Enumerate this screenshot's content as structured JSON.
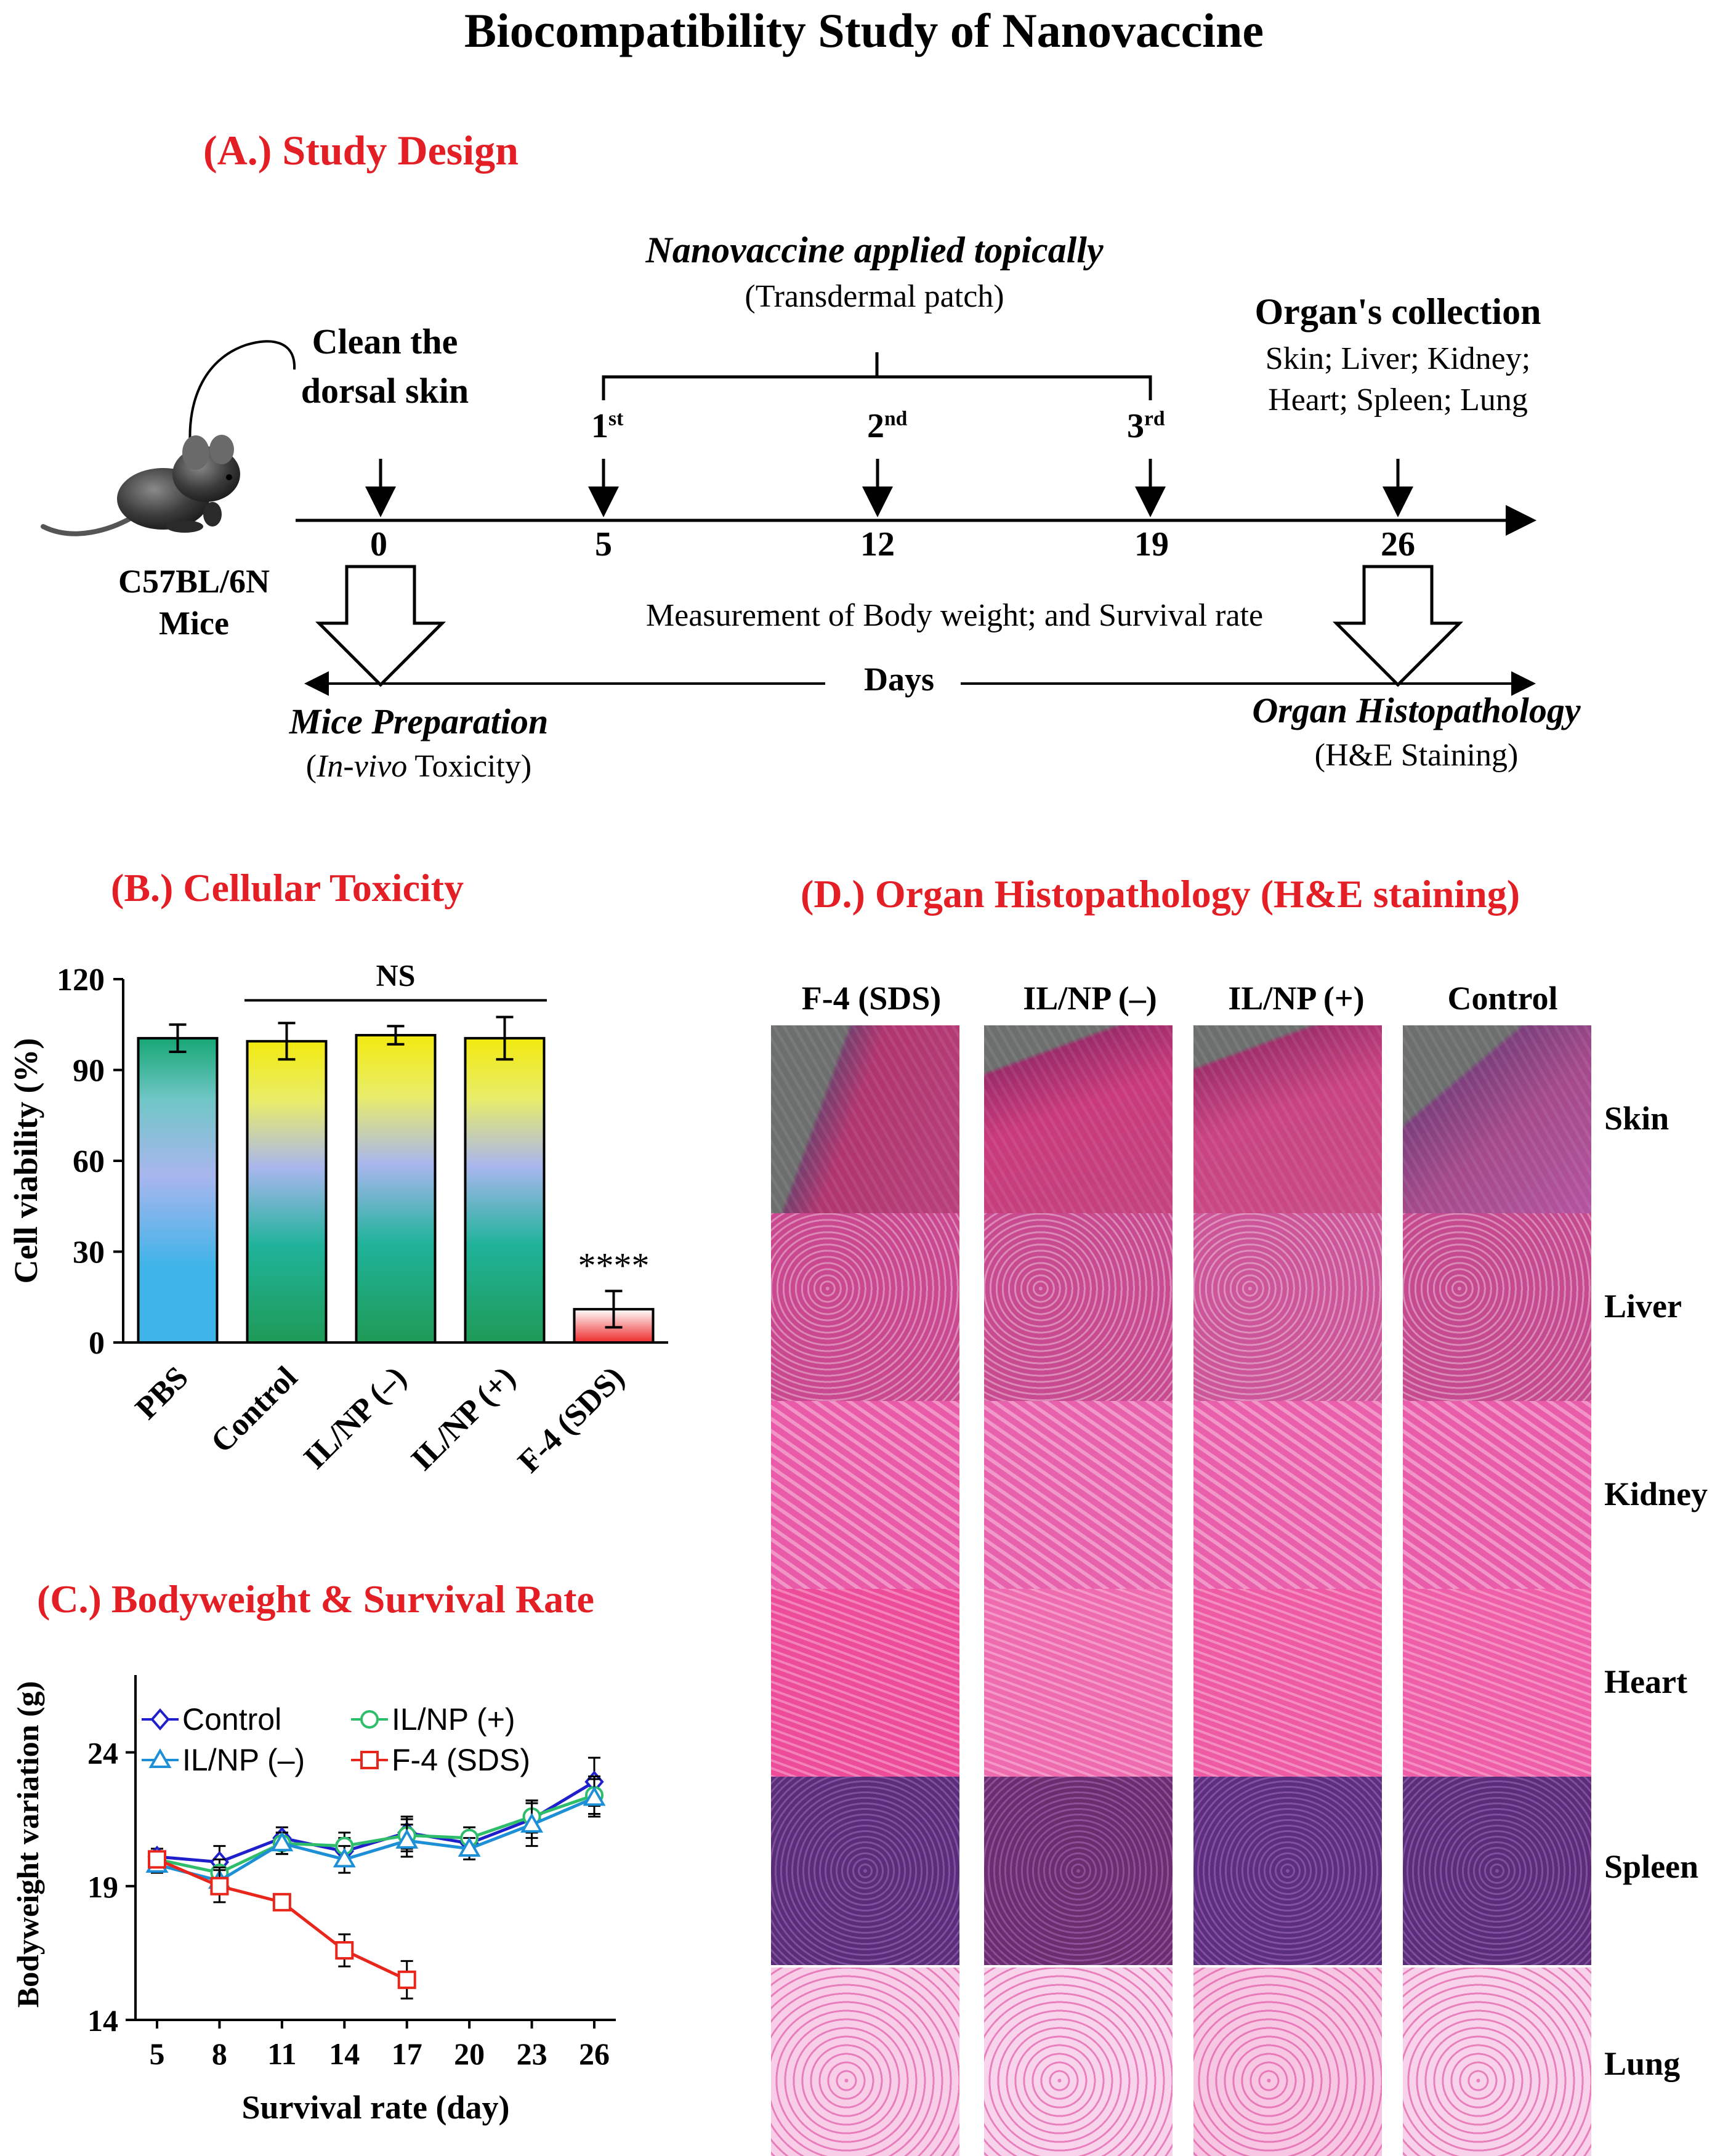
{
  "title": "Biocompatibility Study of Nanovaccine",
  "section_a": {
    "heading": "(A.) Study Design",
    "applied": "Nanovaccine applied topically",
    "patch": "(Transdermal patch)",
    "clean_1": "Clean the",
    "clean_2": "dorsal skin",
    "organs_head": "Organ's collection",
    "organs_1": "Skin; Liver; Kidney;",
    "organs_2": "Heart; Spleen; Lung",
    "mice_1": "C57BL/6N",
    "mice_2": "Mice",
    "doses": [
      {
        "num": "1",
        "sup": "st"
      },
      {
        "num": "2",
        "sup": "nd"
      },
      {
        "num": "3",
        "sup": "rd"
      }
    ],
    "days": [
      "0",
      "5",
      "12",
      "19",
      "26"
    ],
    "measurement": "Measurement of Body weight; and Survival rate",
    "days_label": "Days",
    "prep_1": "Mice Preparation",
    "prep_2_italic": "In-vivo",
    "prep_2_rest": " Toxicity)",
    "prep_2_open": "(",
    "histo_1": "Organ Histopathology",
    "histo_2": "(H&E Staining)"
  },
  "section_b": {
    "heading": "(B.) Cellular Toxicity"
  },
  "section_c": {
    "heading": "(C.) Bodyweight & Survival Rate"
  },
  "section_d": {
    "heading": "(D.) Organ Histopathology (H&E staining)",
    "columns": [
      "F-4 (SDS)",
      "IL/NP (–)",
      "IL/NP (+)",
      "Control"
    ],
    "rows": [
      "Skin",
      "Liver",
      "Kidney",
      "Heart",
      "Spleen",
      "Lung"
    ]
  },
  "chart_data": [
    {
      "type": "bar",
      "ylabel": "Cell viability (%)",
      "ylim": [
        0,
        120
      ],
      "yticks": [
        "0",
        "30",
        "60",
        "90",
        "120"
      ],
      "categories": [
        "PBS",
        "Control",
        "IL/NP (–)",
        "IL/NP (+)",
        "F-4 (SDS)"
      ],
      "values": [
        100.5,
        99.5,
        101.5,
        100.5,
        11
      ],
      "errors": [
        4.5,
        6,
        3,
        7,
        6
      ],
      "annotation_ns": "NS",
      "annotation_sig": "****"
    },
    {
      "type": "line",
      "xlabel": "Survival rate (day)",
      "ylabel": "Bodyweight variation (g)",
      "x": [
        5,
        8,
        11,
        14,
        17,
        20,
        23,
        26
      ],
      "xticks": [
        "5",
        "8",
        "11",
        "14",
        "17",
        "20",
        "23",
        "26"
      ],
      "ylim": [
        14,
        26.2
      ],
      "yticks": [
        "14",
        "19",
        "24"
      ],
      "series": [
        {
          "name": "Control",
          "color": "#1f1fcc",
          "marker": "diamond",
          "values": [
            20.1,
            19.9,
            20.8,
            20.3,
            21.0,
            20.6,
            21.5,
            22.9
          ],
          "errors": [
            0.3,
            0.6,
            0.4,
            0.5,
            0.6,
            0.4,
            0.7,
            0.9
          ]
        },
        {
          "name": "IL/NP (+)",
          "color": "#2ebd6b",
          "marker": "circle",
          "values": [
            20.0,
            19.5,
            20.6,
            20.5,
            20.9,
            20.8,
            21.6,
            22.4
          ],
          "errors": [
            0.3,
            0.5,
            0.4,
            0.5,
            0.6,
            0.4,
            0.6,
            0.7
          ]
        },
        {
          "name": "IL/NP (–)",
          "color": "#1c8fd6",
          "marker": "triangle",
          "values": [
            19.8,
            19.2,
            20.6,
            20.0,
            20.7,
            20.4,
            21.3,
            22.3
          ],
          "errors": [
            0.3,
            0.5,
            0.4,
            0.5,
            0.6,
            0.4,
            0.8,
            0.7
          ]
        },
        {
          "name": "F-4 (SDS)",
          "color": "#e8261b",
          "marker": "square",
          "values": [
            20.0,
            19.0,
            18.4,
            16.6,
            15.5,
            null,
            null,
            null
          ],
          "errors": [
            0.3,
            0.6,
            0.3,
            0.6,
            0.7,
            null,
            null,
            null
          ]
        }
      ]
    }
  ],
  "colors": {
    "accent_red": "#e31e24",
    "bar_pbs": "#3fb4e8",
    "bar_green": "#1f9a56",
    "bar_yellow": "#f2ea10",
    "bar_periwinkle": "#a9b6ee"
  }
}
